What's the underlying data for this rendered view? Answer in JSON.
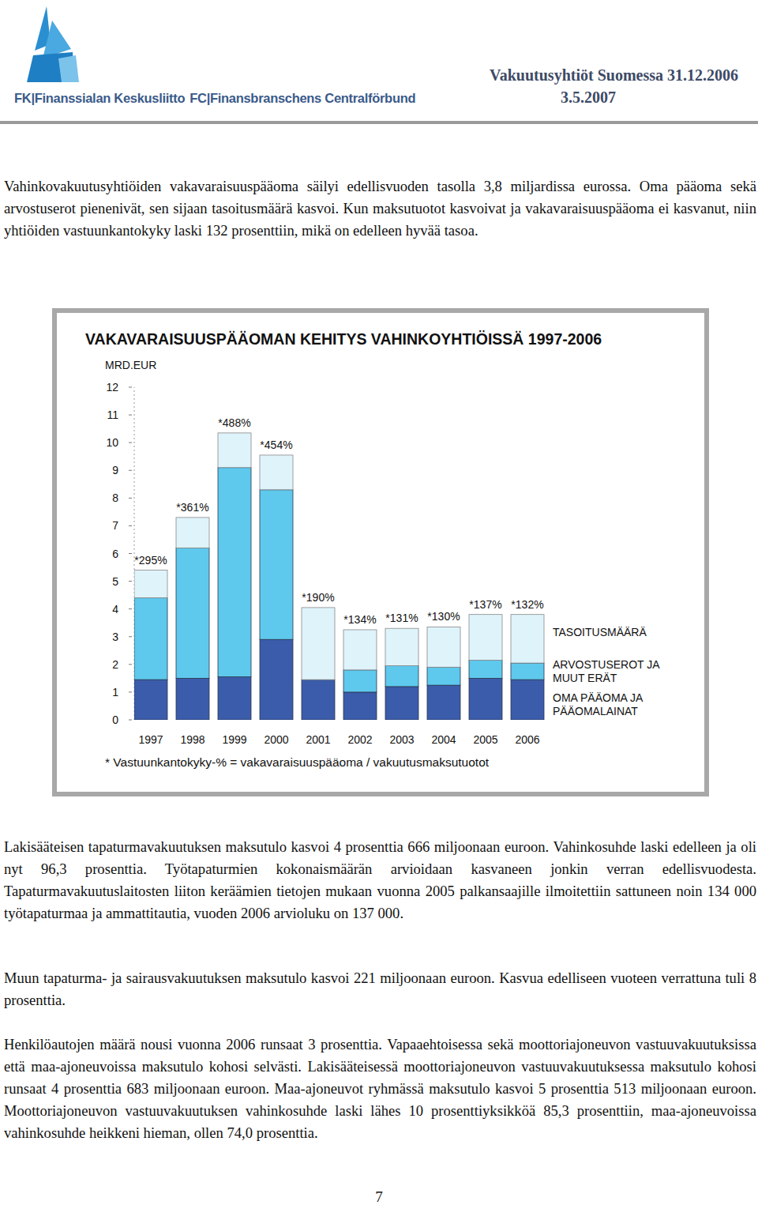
{
  "header": {
    "title": "Vakuutusyhtiöt Suomessa 31.12.2006",
    "date": "3.5.2007",
    "logo_texts": [
      "FK|Finanssialan Keskusliitto",
      "FC|Finansbranschens Centralförbund"
    ]
  },
  "intro": "Vahinkovakuutusyhtiöiden vakavaraisuuspääoma säilyi edellisvuoden tasolla 3,8 miljardissa eurossa. Oma pääoma sekä arvostuserot pienenivät, sen sijaan tasoitusmäärä kasvoi. Kun maksutuotot kasvoivat ja vakavaraisuuspääoma ei kasvanut, niin yhtiöiden vastuunkantokyky laski 132 prosenttiin, mikä on edelleen hyvää tasoa.",
  "chart_data": {
    "type": "bar",
    "stacked": true,
    "title": "VAKAVARAISUUSPÄÄOMAN KEHITYS VAHINKOYHTIÖISSÄ 1997-2006",
    "y_label": "MRD.EUR",
    "categories": [
      "1997",
      "1998",
      "1999",
      "2000",
      "2001",
      "2002",
      "2003",
      "2004",
      "2005",
      "2006"
    ],
    "series": [
      {
        "name": "OMA PÄÄOMA JA PÄÄOMALAINAT",
        "color": "#3b5caa",
        "values": [
          1.45,
          1.5,
          1.55,
          2.9,
          1.45,
          1.0,
          1.2,
          1.25,
          1.5,
          1.45
        ]
      },
      {
        "name": "ARVOSTUSEROT JA MUUT ERÄT",
        "color": "#5ec9ec",
        "values": [
          2.95,
          4.7,
          7.55,
          5.4,
          0,
          0.8,
          0.75,
          0.65,
          0.65,
          0.6
        ]
      },
      {
        "name": "TASOITUSMÄÄRÄ",
        "color": "#dff3fb",
        "values": [
          1.0,
          1.1,
          1.25,
          1.25,
          2.6,
          1.45,
          1.35,
          1.45,
          1.65,
          1.75
        ]
      }
    ],
    "annotations": [
      "*295%",
      "*361%",
      "*488%",
      "*454%",
      "*190%",
      "*134%",
      "*131%",
      "*130%",
      "*137%",
      "*132%"
    ],
    "footnote": "* Vastuunkantokyky-% = vakavaraisuuspääoma / vakuutusmaksutuotot",
    "ylim": [
      0,
      12
    ],
    "yticks": [
      0,
      1,
      2,
      3,
      4,
      5,
      6,
      7,
      8,
      9,
      10,
      11,
      12
    ],
    "grid": false,
    "legend": "right"
  },
  "paragraphs": [
    "Lakisääteisen tapaturmavakuutuksen maksutulo kasvoi 4 prosenttia 666 miljoonaan euroon. Vahinkosuhde laski edelleen ja oli nyt 96,3 prosenttia. Työtapaturmien kokonaismäärän arvioidaan kasvaneen jonkin verran edellisvuodesta. Tapaturmavakuutuslaitosten liiton keräämien tietojen mukaan vuonna 2005 palkansaajille ilmoitettiin sattuneen noin 134 000 työtapaturmaa ja ammattitautia, vuoden 2006 arvioluku on 137 000.",
    "Muun tapaturma- ja sairausvakuutuksen maksutulo kasvoi 221 miljoonaan euroon. Kasvua edelliseen vuoteen verrattuna tuli 8 prosenttia.",
    "Henkilöautojen määrä nousi vuonna 2006 runsaat 3 prosenttia. Vapaaehtoisessa sekä moottoriajoneuvon vastuuvakuutuksissa että maa-ajoneuvoissa maksutulo kohosi selvästi. Lakisääteisessä moottoriajoneuvon vastuuvakuutuksessa maksutulo kohosi runsaat 4 prosenttia 683 miljoonaan euroon. Maa-ajoneuvot ryhmässä maksutulo kasvoi 5 prosenttia 513 miljoonaan euroon. Moottoriajoneuvon vastuuvakuutuksen vahinkosuhde laski lähes 10 prosenttiyksikköä 85,3 prosenttiin, maa-ajoneuvoissa vahinkosuhde heikkeni hieman, ollen 74,0 prosenttia."
  ],
  "page_number": 7
}
